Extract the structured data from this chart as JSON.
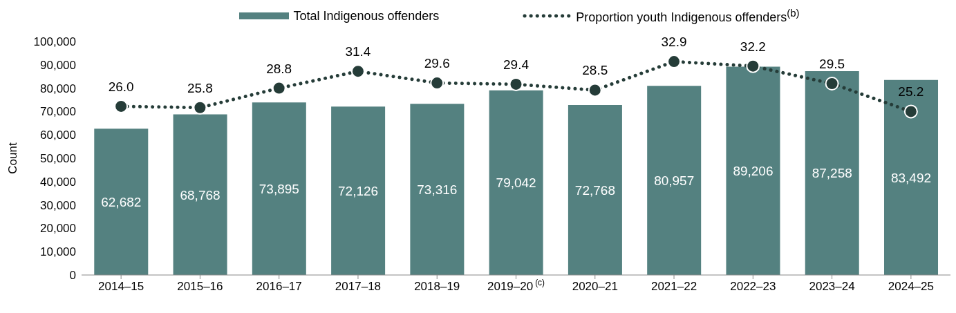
{
  "chart_data": {
    "type": "bar",
    "ylabel": "Count",
    "categories": [
      "2014–15",
      "2015–16",
      "2016–17",
      "2017–18",
      "2018–19",
      "2019–20$^{(c)}$",
      "2020–21",
      "2021–22",
      "2022–23",
      "2023–24",
      "2024–25"
    ],
    "series": [
      {
        "name": "Total Indigenous offenders",
        "color": "#548180",
        "values": [
          62682,
          68768,
          73895,
          72126,
          73316,
          79042,
          72768,
          80957,
          89206,
          87258,
          83492
        ],
        "value_labels": [
          "62,682",
          "68,768",
          "73,895",
          "72,126",
          "73,316",
          "79,042",
          "72,768",
          "80,957",
          "89,206",
          "87,258",
          "83,492"
        ]
      },
      {
        "name": "Proportion youth Indigenous offenders$^{(b)}$",
        "type": "line",
        "axis": "y2",
        "color": "#253c38",
        "marker": "circle",
        "line_style": "dotted",
        "values": [
          26.0,
          25.8,
          28.8,
          31.4,
          29.6,
          29.4,
          28.5,
          32.9,
          32.2,
          29.5,
          25.2
        ],
        "value_labels": [
          "26.0",
          "25.8",
          "28.8",
          "31.4",
          "29.6",
          "29.4",
          "28.5",
          "32.9",
          "32.2",
          "29.5",
          "25.2"
        ]
      }
    ],
    "ylim": [
      0,
      100000
    ],
    "yticks": [
      {
        "value": 0,
        "label": "0"
      },
      {
        "value": 10000,
        "label": "10,000"
      },
      {
        "value": 20000,
        "label": "20,000"
      },
      {
        "value": 30000,
        "label": "30,000"
      },
      {
        "value": 40000,
        "label": "40,000"
      },
      {
        "value": 50000,
        "label": "50,000"
      },
      {
        "value": 60000,
        "label": "60,000"
      },
      {
        "value": 70000,
        "label": "70,000"
      },
      {
        "value": 80000,
        "label": "80,000"
      },
      {
        "value": 90000,
        "label": "90,000"
      },
      {
        "value": 100000,
        "label": "100,000"
      }
    ],
    "legend": "top",
    "tick_labels": "xy"
  }
}
